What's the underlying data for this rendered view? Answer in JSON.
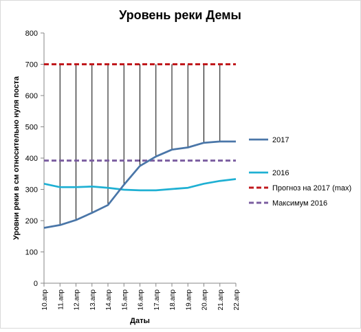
{
  "chart_data": {
    "type": "line",
    "title": "Уровень реки Демы",
    "xlabel": "Даты",
    "ylabel": "Уровни реки в см относительно нуля поста",
    "categories": [
      "10.апр",
      "11.апр",
      "12.апр",
      "13.апр",
      "14.апр",
      "15.апр",
      "16.апр",
      "17.апр",
      "18.апр",
      "19.апр",
      "20.апр",
      "21.апр",
      "22.апр"
    ],
    "ylim": [
      0,
      800
    ],
    "yticks": [
      "0",
      "100",
      "200",
      "300",
      "400",
      "500",
      "600",
      "700",
      "800"
    ],
    "grid": false,
    "legend_position": "right",
    "series": [
      {
        "name": "2017",
        "style": "solid",
        "color": "#4a76a8",
        "values": [
          177,
          186,
          202,
          225,
          250,
          315,
          375,
          405,
          427,
          434,
          449,
          453,
          453
        ]
      },
      {
        "name": "2016",
        "style": "solid",
        "color": "#1fb0d3",
        "values": [
          318,
          307,
          307,
          309,
          305,
          299,
          297,
          297,
          301,
          305,
          318,
          327,
          333
        ]
      },
      {
        "name": "Прогноз на 2017 (max)",
        "style": "dashed",
        "color": "#c0181c",
        "values": [
          700,
          700,
          700,
          700,
          700,
          700,
          700,
          700,
          700,
          700,
          700,
          700,
          700
        ]
      },
      {
        "name": "Максимум 2016",
        "style": "dashed",
        "color": "#7b5ea0",
        "values": [
          392,
          392,
          392,
          392,
          392,
          392,
          392,
          392,
          392,
          392,
          392,
          392,
          392
        ]
      }
    ],
    "drop_lines": {
      "color": "#000000",
      "from_series": 2,
      "to_series": 0,
      "indices": [
        1,
        2,
        3,
        4,
        5,
        6,
        7,
        8,
        9,
        10,
        11
      ]
    }
  }
}
